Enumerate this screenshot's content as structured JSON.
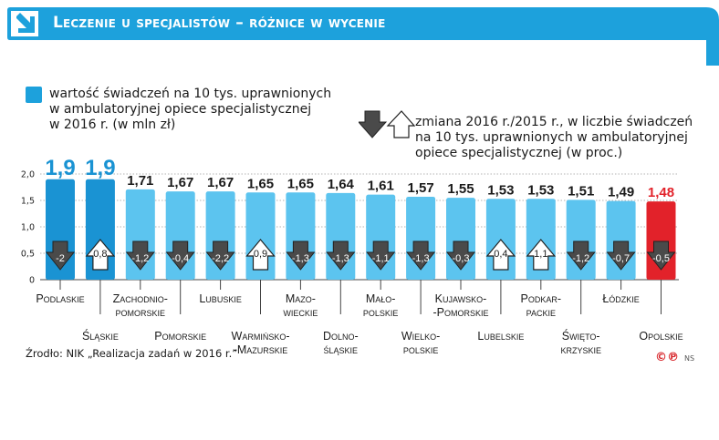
{
  "header": {
    "title": "Leczenie u specjalistów – różnice w wycenie"
  },
  "legend": {
    "values_lines": [
      "wartość świadczeń na 10 tys. uprawnionych",
      "w ambulatoryjnej opiece specjalistycznej",
      "w 2016 r.  (w mln zł)"
    ],
    "change_lines": [
      "zmiana 2016 r./2015 r., w liczbie świadczeń",
      "na 10 tys. uprawnionych w ambulatoryjnej",
      "opiece specjalistycznej (w proc.)"
    ]
  },
  "source": "Źrodło: NIK „Realizacja zadań w 2016 r.”",
  "credit": "©℗",
  "credit_suffix": "NS",
  "colors": {
    "header": "#1da1dc",
    "bar_top": "#1a93d3",
    "bar": "#5cc4ef",
    "bar_min": "#e2222a",
    "arrow_down": "#4a4a4a",
    "arrow_up": "#ffffff"
  },
  "chart_data": {
    "type": "bar",
    "ylim": [
      0,
      2.0
    ],
    "yticks": [
      "0",
      "0,5",
      "1,0",
      "1,5",
      "2,0"
    ],
    "categories": [
      [
        "Podlaskie"
      ],
      [
        "Śląskie"
      ],
      [
        "Zachodnio-",
        "pomorskie"
      ],
      [
        "Pomorskie"
      ],
      [
        "Lubuskie"
      ],
      [
        "Warmińsko-",
        "-Mazurskie"
      ],
      [
        "Mazo-",
        "wieckie"
      ],
      [
        "Dolno-",
        "śląskie"
      ],
      [
        "Mało-",
        "polskie"
      ],
      [
        "Wielko-",
        "polskie"
      ],
      [
        "Kujawsko-",
        "-Pomorskie"
      ],
      [
        "Lubelskie"
      ],
      [
        "Podkar-",
        "packie"
      ],
      [
        "Święto-",
        "krzyskie"
      ],
      [
        "Łódzkie"
      ],
      [
        "Opolskie"
      ]
    ],
    "values": [
      1.9,
      1.9,
      1.71,
      1.67,
      1.67,
      1.65,
      1.65,
      1.64,
      1.61,
      1.57,
      1.55,
      1.53,
      1.53,
      1.51,
      1.49,
      1.48
    ],
    "value_labels": [
      "1,9",
      "1,9",
      "1,71",
      "1,67",
      "1,67",
      "1,65",
      "1,65",
      "1,64",
      "1,61",
      "1,57",
      "1,55",
      "1,53",
      "1,53",
      "1,51",
      "1,49",
      "1,48"
    ],
    "changes": [
      -2,
      0.8,
      -1.2,
      -0.4,
      -2.2,
      0.9,
      -1.3,
      -1.3,
      -1.1,
      -1.3,
      -0.3,
      0.4,
      1.1,
      -1.2,
      -0.7,
      -0.5
    ],
    "change_labels": [
      "-2",
      "0,8",
      "-1,2",
      "-0,4",
      "-2,2",
      "0,9",
      "-1,3",
      "-1,3",
      "-1,1",
      "-1,3",
      "-0,3",
      "0,4",
      "1,1",
      "-1,2",
      "-0,7",
      "-0,5"
    ]
  }
}
